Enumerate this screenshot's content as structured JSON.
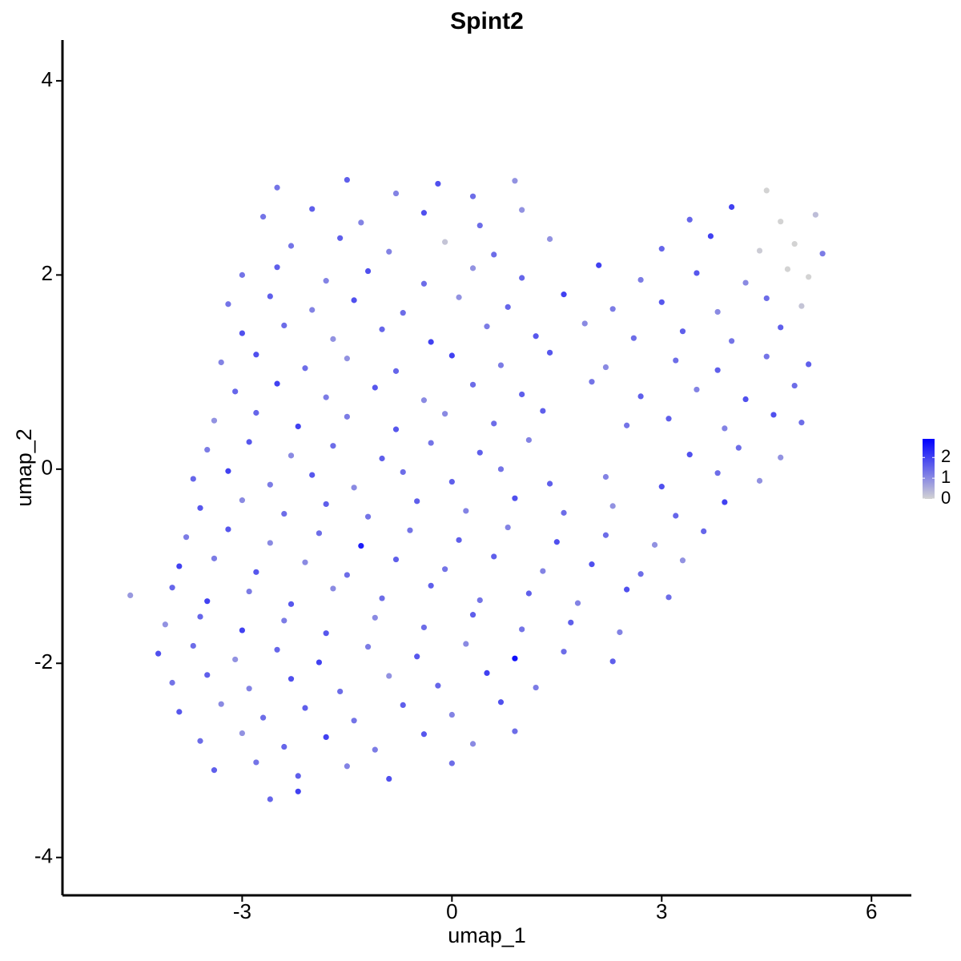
{
  "chart_data": {
    "type": "scatter",
    "title": "Spint2",
    "x_label": "umap_1",
    "y_label": "umap_2",
    "xlim": [
      -5.57,
      6.57
    ],
    "ylim": [
      -4.39,
      4.42
    ],
    "xticks": [
      -3,
      0,
      3,
      6
    ],
    "yticks": [
      -4,
      -2,
      0,
      2,
      4
    ],
    "color_low": "#d3d3d3",
    "color_high": "#0000ff",
    "colorlim": [
      0,
      2.9
    ],
    "colorticks": [
      0,
      1,
      2
    ],
    "x": [
      -2.5,
      -1.5,
      -0.8,
      -0.2,
      0.3,
      0.9,
      4.5,
      -2.7,
      -2.0,
      -1.3,
      -0.4,
      0.4,
      1.0,
      3.4,
      4.0,
      4.7,
      5.2,
      -2.3,
      -1.6,
      -0.9,
      -0.1,
      0.6,
      1.4,
      3.0,
      3.7,
      4.4,
      4.9,
      5.3,
      -3.0,
      -2.5,
      -1.8,
      -1.2,
      -0.4,
      0.3,
      1.0,
      2.1,
      2.7,
      3.5,
      4.2,
      4.8,
      5.1,
      -3.2,
      -2.6,
      -2.0,
      -1.4,
      -0.7,
      0.1,
      0.8,
      1.6,
      2.3,
      3.0,
      3.8,
      4.5,
      5.0,
      -3.0,
      -2.4,
      -1.7,
      -1.0,
      -0.3,
      0.5,
      1.2,
      1.9,
      2.6,
      3.3,
      4.0,
      4.7,
      -3.3,
      -2.8,
      -2.1,
      -1.5,
      -0.8,
      0.0,
      0.7,
      1.4,
      2.2,
      3.2,
      3.8,
      4.5,
      5.1,
      -3.1,
      -2.5,
      -1.8,
      -1.1,
      -0.4,
      0.3,
      1.0,
      2.0,
      2.7,
      3.5,
      4.2,
      4.9,
      -3.4,
      -2.8,
      -2.2,
      -1.5,
      -0.8,
      -0.1,
      0.6,
      1.3,
      2.5,
      3.1,
      3.9,
      4.6,
      5.0,
      -3.5,
      -2.9,
      -2.3,
      -1.7,
      -1.0,
      -0.3,
      0.4,
      1.1,
      3.4,
      4.1,
      4.7,
      -3.7,
      -3.2,
      -2.6,
      -2.0,
      -1.4,
      -0.7,
      0.0,
      0.7,
      1.4,
      2.2,
      3.0,
      3.8,
      4.4,
      -3.6,
      -3.0,
      -2.4,
      -1.8,
      -1.2,
      -0.5,
      0.2,
      0.9,
      1.6,
      2.3,
      3.2,
      3.9,
      -3.8,
      -3.2,
      -2.6,
      -1.9,
      -1.3,
      -0.6,
      0.1,
      0.8,
      1.5,
      2.2,
      2.9,
      3.6,
      -3.9,
      -3.4,
      -2.8,
      -2.1,
      -1.5,
      -0.8,
      -0.1,
      0.6,
      1.3,
      2.0,
      2.7,
      3.3,
      -4.6,
      -4.0,
      -3.5,
      -2.9,
      -2.3,
      -1.7,
      -1.0,
      -0.3,
      0.4,
      1.1,
      1.8,
      2.5,
      3.1,
      -4.1,
      -3.6,
      -3.0,
      -2.4,
      -1.8,
      -1.1,
      -0.4,
      0.3,
      1.0,
      1.7,
      2.4,
      -4.2,
      -3.7,
      -3.1,
      -2.5,
      -1.9,
      -1.2,
      -0.5,
      0.2,
      0.9,
      1.6,
      2.3,
      -4.0,
      -3.5,
      -2.9,
      -2.3,
      -1.6,
      -0.9,
      -0.2,
      0.5,
      1.2,
      -3.9,
      -3.3,
      -2.7,
      -2.1,
      -1.4,
      -0.7,
      0.0,
      0.7,
      -3.6,
      -3.0,
      -2.4,
      -1.8,
      -1.1,
      -0.4,
      0.3,
      0.9,
      -3.4,
      -2.8,
      -2.2,
      -1.5,
      -0.9,
      0.0,
      -2.6,
      -2.2
    ],
    "y": [
      2.9,
      2.98,
      2.84,
      2.94,
      2.81,
      2.97,
      2.87,
      2.6,
      2.68,
      2.54,
      2.64,
      2.51,
      2.67,
      2.57,
      2.7,
      2.55,
      2.62,
      2.3,
      2.38,
      2.24,
      2.34,
      2.21,
      2.37,
      2.27,
      2.4,
      2.25,
      2.32,
      2.22,
      2.0,
      2.08,
      1.94,
      2.04,
      1.91,
      2.07,
      1.97,
      2.1,
      1.95,
      2.02,
      1.92,
      2.06,
      1.98,
      1.7,
      1.78,
      1.64,
      1.74,
      1.61,
      1.77,
      1.67,
      1.8,
      1.65,
      1.72,
      1.62,
      1.76,
      1.68,
      1.4,
      1.48,
      1.34,
      1.44,
      1.31,
      1.47,
      1.37,
      1.5,
      1.35,
      1.42,
      1.32,
      1.46,
      1.1,
      1.18,
      1.04,
      1.14,
      1.01,
      1.17,
      1.07,
      1.2,
      1.05,
      1.12,
      1.02,
      1.16,
      1.08,
      0.8,
      0.88,
      0.74,
      0.84,
      0.71,
      0.87,
      0.77,
      0.9,
      0.75,
      0.82,
      0.72,
      0.86,
      0.5,
      0.58,
      0.44,
      0.54,
      0.41,
      0.57,
      0.47,
      0.6,
      0.45,
      0.52,
      0.42,
      0.56,
      0.48,
      0.2,
      0.28,
      0.14,
      0.24,
      0.11,
      0.27,
      0.17,
      0.3,
      0.15,
      0.22,
      0.12,
      -0.1,
      -0.02,
      -0.16,
      -0.06,
      -0.19,
      -0.03,
      -0.13,
      0,
      -0.15,
      -0.08,
      -0.18,
      -0.04,
      -0.12,
      -0.4,
      -0.32,
      -0.46,
      -0.36,
      -0.49,
      -0.33,
      -0.43,
      -0.3,
      -0.45,
      -0.38,
      -0.48,
      -0.34,
      -0.7,
      -0.62,
      -0.76,
      -0.66,
      -0.79,
      -0.63,
      -0.73,
      -0.6,
      -0.75,
      -0.68,
      -0.78,
      -0.64,
      -1,
      -0.92,
      -1.06,
      -0.96,
      -1.09,
      -0.93,
      -1.03,
      -0.9,
      -1.05,
      -0.98,
      -1.08,
      -0.94,
      -1.3,
      -1.22,
      -1.36,
      -1.26,
      -1.39,
      -1.23,
      -1.33,
      -1.2,
      -1.35,
      -1.28,
      -1.38,
      -1.24,
      -1.32,
      -1.6,
      -1.52,
      -1.66,
      -1.56,
      -1.69,
      -1.53,
      -1.63,
      -1.5,
      -1.65,
      -1.58,
      -1.68,
      -1.9,
      -1.82,
      -1.96,
      -1.86,
      -1.99,
      -1.83,
      -1.93,
      -1.8,
      -1.95,
      -1.88,
      -1.98,
      -2.2,
      -2.12,
      -2.26,
      -2.16,
      -2.29,
      -2.13,
      -2.23,
      -2.1,
      -2.25,
      -2.5,
      -2.42,
      -2.56,
      -2.46,
      -2.59,
      -2.43,
      -2.53,
      -2.4,
      -2.8,
      -2.72,
      -2.86,
      -2.76,
      -2.89,
      -2.73,
      -2.83,
      -2.7,
      -3.1,
      -3.02,
      -3.16,
      -3.06,
      -3.19,
      -3.03,
      -3.4,
      -3.32
    ],
    "values": [
      1.3,
      1.6,
      1.1,
      1.8,
      1.4,
      0.9,
      0,
      1.3,
      1.6,
      1.1,
      1.8,
      1.4,
      0.9,
      1.5,
      2.0,
      0,
      0.3,
      1.3,
      1.6,
      1.1,
      0.2,
      1.4,
      0.9,
      1.5,
      2.0,
      0.1,
      0,
      1.2,
      1.3,
      1.6,
      1.1,
      1.8,
      1.4,
      0.9,
      1.5,
      2.0,
      1.2,
      1.7,
      1.0,
      0,
      0,
      1.3,
      1.6,
      1.1,
      1.8,
      1.4,
      0.9,
      1.5,
      2.0,
      1.2,
      1.7,
      1.0,
      1.4,
      0.2,
      1.8,
      1.4,
      0.9,
      1.5,
      2.0,
      1.2,
      1.7,
      1.0,
      1.4,
      1.6,
      1.3,
      1.6,
      1.1,
      1.8,
      1.4,
      0.9,
      1.5,
      2.0,
      1.2,
      1.7,
      1.0,
      1.4,
      1.6,
      1.3,
      1.6,
      1.5,
      2.0,
      1.2,
      1.7,
      1.0,
      1.4,
      1.6,
      1.3,
      1.6,
      1.1,
      1.8,
      1.4,
      0.9,
      1.5,
      2.0,
      1.2,
      1.7,
      1.0,
      1.4,
      1.6,
      1.3,
      1.6,
      1.1,
      1.8,
      1.4,
      1.2,
      1.7,
      1.0,
      1.4,
      1.6,
      1.3,
      1.6,
      1.1,
      1.8,
      1.4,
      0.9,
      1.5,
      2.0,
      1.2,
      1.7,
      1.0,
      1.4,
      1.6,
      1.3,
      1.6,
      1.1,
      1.8,
      1.4,
      0.9,
      1.7,
      1.0,
      1.4,
      1.6,
      1.3,
      1.6,
      1.1,
      1.8,
      1.4,
      0.9,
      1.5,
      2.0,
      1.2,
      1.7,
      1.0,
      1.4,
      2.5,
      1.3,
      1.6,
      1.1,
      1.8,
      1.4,
      0.9,
      1.5,
      2.0,
      1.2,
      1.7,
      1.0,
      1.4,
      1.6,
      1.3,
      1.6,
      1.1,
      1.8,
      1.4,
      0.9,
      0.8,
      1.5,
      2.0,
      1.2,
      1.7,
      1.0,
      1.4,
      1.6,
      1.3,
      1.6,
      1.1,
      1.8,
      1.4,
      0.9,
      1.5,
      2.0,
      1.2,
      1.7,
      1.0,
      1.4,
      1.6,
      1.3,
      1.6,
      1.1,
      1.8,
      1.4,
      0.9,
      1.5,
      2.0,
      1.2,
      1.7,
      1.0,
      2.7,
      1.4,
      1.6,
      1.3,
      1.6,
      1.1,
      1.8,
      1.4,
      0.9,
      1.5,
      2.0,
      1.2,
      1.7,
      1.0,
      1.4,
      1.6,
      1.3,
      1.6,
      1.1,
      1.8,
      1.4,
      0.9,
      1.5,
      2.0,
      1.2,
      1.7,
      1.0,
      1.4,
      1.6,
      1.3,
      1.6,
      1.1,
      1.8,
      1.4,
      1.5,
      2.0
    ]
  }
}
